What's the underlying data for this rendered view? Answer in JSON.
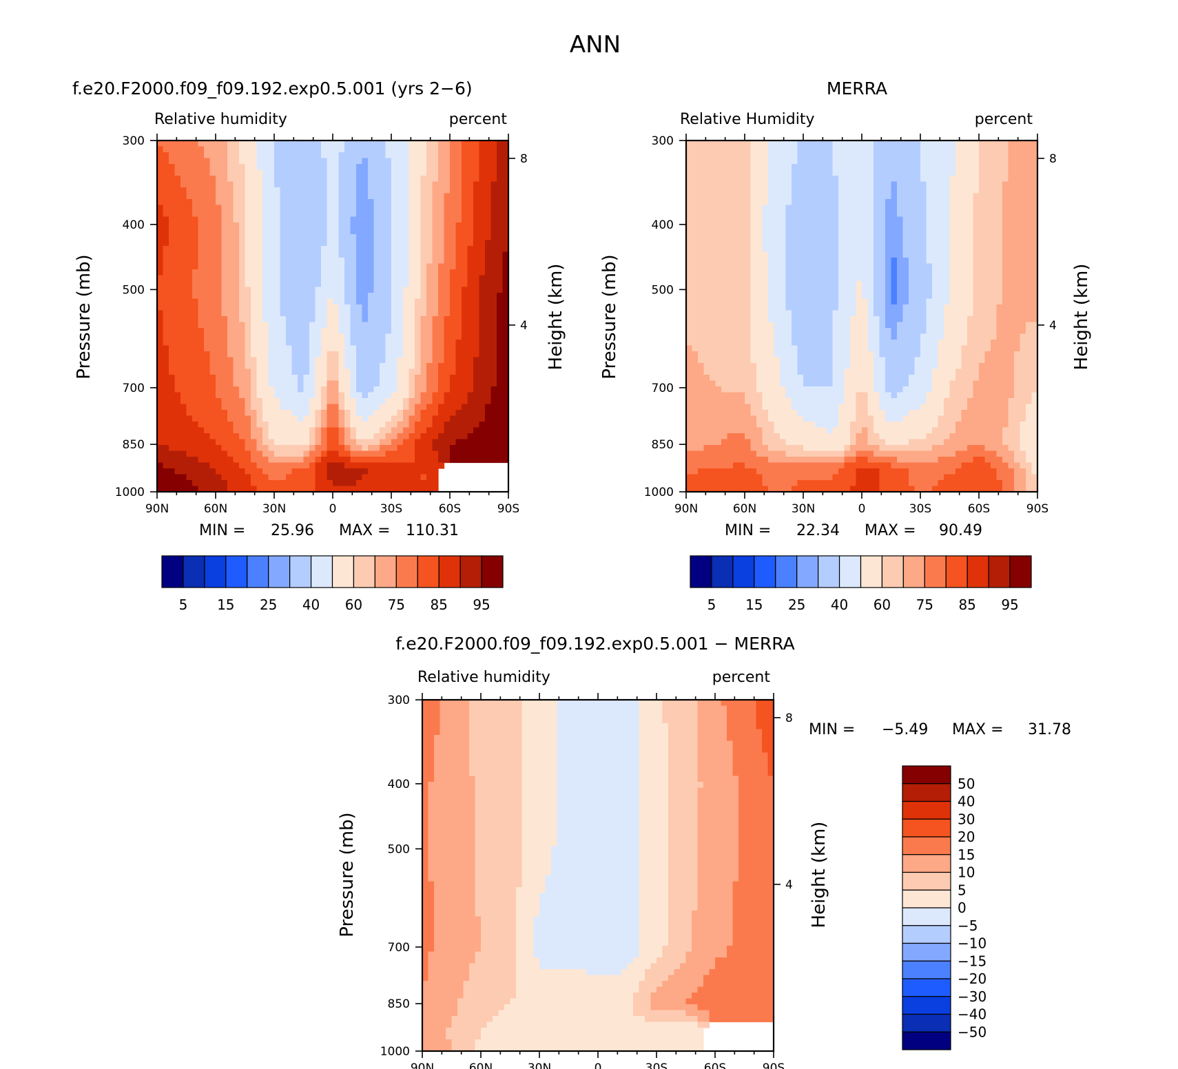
{
  "figure_title": "ANN",
  "colors": {
    "rh_palette": [
      "#000080",
      "#0a2eb4",
      "#0a3fe0",
      "#1f5cff",
      "#4b80ff",
      "#83a8ff",
      "#b4cdff",
      "#dce9fd",
      "#fde6d4",
      "#fdcbb1",
      "#fda886",
      "#fb7a4d",
      "#f5531f",
      "#e03208",
      "#b51e06",
      "#850000"
    ],
    "diff_palette": [
      "#000080",
      "#0a2eb4",
      "#0a3fe0",
      "#1f5cff",
      "#4b80ff",
      "#83a8ff",
      "#b4cdff",
      "#dce9fd",
      "#fde6d4",
      "#fdcbb1",
      "#fda886",
      "#fb7a4d",
      "#f5531f",
      "#e03208",
      "#b51e06",
      "#850000"
    ]
  },
  "panels": [
    {
      "title": "f.e20.F2000.f09_f09.192.exp0.5.001 (yrs 2−6)",
      "variable_label": "Relative humidity",
      "units_label": "percent",
      "ylabel": "Pressure (mb)",
      "ylabel_right": "Height (km)",
      "stats": {
        "min_label": "MIN =",
        "min_value": "25.96",
        "max_label": "MAX =",
        "max_value": "110.31"
      }
    },
    {
      "title": "MERRA",
      "variable_label": "Relative Humidity",
      "units_label": "percent",
      "ylabel": "Pressure (mb)",
      "ylabel_right": "Height (km)",
      "stats": {
        "min_label": "MIN =",
        "min_value": "22.34",
        "max_label": "MAX =",
        "max_value": "90.49"
      }
    },
    {
      "title": "f.e20.F2000.f09_f09.192.exp0.5.001 − MERRA",
      "variable_label": "Relative humidity",
      "units_label": "percent",
      "ylabel": "Pressure (mb)",
      "ylabel_right": "Height (km)",
      "stats": {
        "min_label": "MIN =",
        "min_value": "−5.49",
        "max_label": "MAX =",
        "max_value": "31.78"
      }
    }
  ],
  "chart_data": [
    {
      "type": "heatmap",
      "title": "f.e20.F2000.f09_f09.192.exp0.5.001 (yrs 2−6)",
      "xlabel": "",
      "ylabel": "Pressure (mb)",
      "ylabel_right": "Height (km)",
      "x_tick_labels": [
        "90N",
        "60N",
        "30N",
        "0",
        "30S",
        "60S",
        "90S"
      ],
      "x_range": [
        90,
        -90
      ],
      "y_tick_labels": [
        "300",
        "400",
        "500",
        "700",
        "850",
        "1000"
      ],
      "y_range_mb": [
        300,
        1000
      ],
      "y_scale": "log",
      "right_tick_labels": [
        "8",
        "4"
      ],
      "levels": [
        5,
        10,
        15,
        20,
        25,
        30,
        40,
        50,
        60,
        65,
        70,
        75,
        80,
        85,
        90,
        95
      ],
      "colorbar_labels": [
        "5",
        "15",
        "25",
        "40",
        "60",
        "75",
        "85",
        "95"
      ],
      "lat": [
        90,
        60,
        45,
        30,
        15,
        0,
        -15,
        -30,
        -45,
        -60,
        -75,
        -90
      ],
      "pressure": [
        300,
        400,
        500,
        700,
        850,
        925,
        1000
      ],
      "values": [
        [
          75,
          68,
          58,
          40,
          30,
          45,
          30,
          42,
          58,
          70,
          80,
          88
        ],
        [
          82,
          72,
          62,
          42,
          30,
          42,
          24,
          38,
          60,
          72,
          82,
          90
        ],
        [
          80,
          72,
          62,
          42,
          30,
          50,
          26,
          38,
          62,
          75,
          85,
          92
        ],
        [
          82,
          75,
          68,
          48,
          38,
          70,
          35,
          45,
          68,
          80,
          86,
          94
        ],
        [
          85,
          80,
          75,
          60,
          58,
          80,
          60,
          72,
          82,
          90,
          92,
          96
        ],
        [
          92,
          85,
          80,
          72,
          76,
          88,
          86,
          82,
          80,
          null,
          null,
          null
        ],
        [
          96,
          88,
          82,
          78,
          78,
          84,
          84,
          80,
          80,
          null,
          null,
          null
        ]
      ],
      "stats": {
        "min": 25.96,
        "max": 110.31
      }
    },
    {
      "type": "heatmap",
      "title": "MERRA",
      "xlabel": "",
      "ylabel": "Pressure (mb)",
      "ylabel_right": "Height (km)",
      "x_tick_labels": [
        "90N",
        "60N",
        "30N",
        "0",
        "30S",
        "60S",
        "90S"
      ],
      "x_range": [
        90,
        -90
      ],
      "y_tick_labels": [
        "300",
        "400",
        "500",
        "700",
        "850",
        "1000"
      ],
      "y_range_mb": [
        300,
        1000
      ],
      "y_scale": "log",
      "right_tick_labels": [
        "8",
        "4"
      ],
      "levels": [
        5,
        10,
        15,
        20,
        25,
        30,
        40,
        50,
        60,
        65,
        70,
        75,
        80,
        85,
        90,
        95
      ],
      "colorbar_labels": [
        "5",
        "15",
        "25",
        "40",
        "60",
        "75",
        "85",
        "95"
      ],
      "lat": [
        90,
        60,
        45,
        30,
        15,
        0,
        -15,
        -30,
        -45,
        -60,
        -75,
        -90
      ],
      "pressure": [
        300,
        400,
        500,
        700,
        850,
        925,
        1000
      ],
      "values": [
        [
          62,
          62,
          48,
          38,
          40,
          48,
          32,
          40,
          48,
          60,
          65,
          66
        ],
        [
          62,
          62,
          44,
          34,
          38,
          48,
          26,
          38,
          50,
          62,
          66,
          67
        ],
        [
          64,
          62,
          46,
          30,
          38,
          52,
          22,
          34,
          50,
          62,
          66,
          67
        ],
        [
          66,
          64,
          54,
          40,
          40,
          62,
          36,
          44,
          60,
          66,
          66,
          60
        ],
        [
          68,
          72,
          62,
          58,
          52,
          68,
          58,
          62,
          66,
          70,
          64,
          52
        ],
        [
          74,
          76,
          72,
          74,
          74,
          82,
          78,
          72,
          74,
          80,
          72,
          58
        ],
        [
          80,
          80,
          74,
          76,
          76,
          82,
          78,
          74,
          78,
          80,
          74,
          60
        ]
      ],
      "stats": {
        "min": 22.34,
        "max": 90.49
      }
    },
    {
      "type": "heatmap",
      "title": "f.e20.F2000.f09_f09.192.exp0.5.001 − MERRA",
      "xlabel": "",
      "ylabel": "Pressure (mb)",
      "ylabel_right": "Height (km)",
      "x_tick_labels": [
        "90N",
        "60N",
        "30N",
        "0",
        "30S",
        "60S",
        "90S"
      ],
      "x_range": [
        90,
        -90
      ],
      "y_tick_labels": [
        "300",
        "400",
        "500",
        "700",
        "850",
        "1000"
      ],
      "y_range_mb": [
        300,
        1000
      ],
      "y_scale": "log",
      "right_tick_labels": [
        "8",
        "4"
      ],
      "levels": [
        -50,
        -40,
        -30,
        -20,
        -15,
        -10,
        -5,
        0,
        5,
        10,
        15,
        20,
        30,
        40,
        50
      ],
      "colorbar_labels": [
        "−50",
        "−40",
        "−30",
        "−20",
        "−15",
        "−10",
        "−5",
        "0",
        "5",
        "10",
        "15",
        "20",
        "30",
        "40",
        "50"
      ],
      "lat": [
        90,
        60,
        45,
        30,
        15,
        0,
        -15,
        -30,
        -45,
        -60,
        -75,
        -90
      ],
      "pressure": [
        300,
        400,
        500,
        700,
        850,
        925,
        1000
      ],
      "values": [
        [
          18,
          8,
          7,
          2,
          -2,
          -2,
          -2,
          4,
          8,
          14,
          18,
          24
        ],
        [
          16,
          9,
          7,
          2,
          -2,
          -3,
          -2,
          3,
          8,
          12,
          16,
          20
        ],
        [
          16,
          9,
          7,
          2,
          -2,
          -3,
          -2,
          3,
          8,
          12,
          16,
          18
        ],
        [
          16,
          10,
          7,
          -2,
          -3,
          -3,
          -3,
          3,
          9,
          14,
          16,
          18
        ],
        [
          15,
          7,
          5,
          4,
          5,
          3,
          4,
          13,
          15,
          18,
          16,
          15
        ],
        [
          14,
          5,
          3,
          3,
          3,
          3,
          2,
          3,
          2,
          null,
          null,
          null
        ],
        [
          15,
          4,
          2,
          1,
          1,
          1,
          1,
          1,
          1,
          null,
          null,
          null
        ]
      ],
      "stats": {
        "min": -5.49,
        "max": 31.78
      }
    }
  ]
}
